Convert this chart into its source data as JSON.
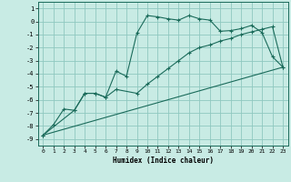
{
  "xlabel": "Humidex (Indice chaleur)",
  "bg_color": "#c8ebe4",
  "grid_color": "#8fc8c0",
  "line_color": "#1a6b5a",
  "xlim": [
    -0.5,
    23.5
  ],
  "ylim": [
    -9.5,
    1.5
  ],
  "yticks": [
    1,
    0,
    -1,
    -2,
    -3,
    -4,
    -5,
    -6,
    -7,
    -8,
    -9
  ],
  "xticks": [
    0,
    1,
    2,
    3,
    4,
    5,
    6,
    7,
    8,
    9,
    10,
    11,
    12,
    13,
    14,
    15,
    16,
    17,
    18,
    19,
    20,
    21,
    22,
    23
  ],
  "line1_x": [
    0,
    1,
    2,
    3,
    4,
    5,
    6,
    7,
    8,
    9,
    10,
    11,
    12,
    13,
    14,
    15,
    16,
    17,
    18,
    19,
    20,
    21,
    22,
    23
  ],
  "line1_y": [
    -8.7,
    -7.9,
    -6.7,
    -6.8,
    -5.5,
    -5.5,
    -5.8,
    -3.8,
    -4.2,
    -0.9,
    0.45,
    0.35,
    0.2,
    0.1,
    0.45,
    0.2,
    0.1,
    -0.75,
    -0.7,
    -0.55,
    -0.3,
    -0.85,
    -2.7,
    -3.5
  ],
  "line2_x": [
    0,
    3,
    4,
    5,
    6,
    7,
    9,
    10,
    11,
    12,
    13,
    14,
    15,
    16,
    17,
    18,
    19,
    20,
    21,
    22,
    23
  ],
  "line2_y": [
    -8.7,
    -6.8,
    -5.5,
    -5.5,
    -5.8,
    -5.2,
    -5.5,
    -4.8,
    -4.2,
    -3.6,
    -3.0,
    -2.4,
    -2.0,
    -1.8,
    -1.5,
    -1.3,
    -1.0,
    -0.8,
    -0.6,
    -0.4,
    -3.5
  ],
  "line3_x": [
    0,
    23
  ],
  "line3_y": [
    -8.7,
    -3.5
  ]
}
